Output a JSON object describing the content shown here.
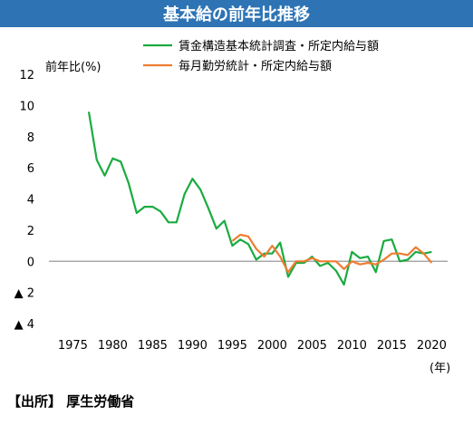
{
  "source": "【出所】 厚生労働省",
  "chart_data": {
    "type": "line",
    "title": "基本給の前年比推移",
    "ylabel": "前年比(%)",
    "xlabel": "(年)",
    "xlim": [
      1972,
      2022
    ],
    "ylim": [
      -4,
      12
    ],
    "xticks": [
      1975,
      1980,
      1985,
      1990,
      1995,
      2000,
      2005,
      2010,
      2015,
      2020
    ],
    "yticks": [
      {
        "value": 12,
        "label": "12"
      },
      {
        "value": 10,
        "label": "10"
      },
      {
        "value": 8,
        "label": "8"
      },
      {
        "value": 6,
        "label": "6"
      },
      {
        "value": 4,
        "label": "4"
      },
      {
        "value": 2,
        "label": "2"
      },
      {
        "value": 0,
        "label": "0"
      },
      {
        "value": -2,
        "label": "▲ 2"
      },
      {
        "value": -4,
        "label": "▲ 4"
      }
    ],
    "legend_position": "top-right",
    "series": [
      {
        "name": "賃金構造基本統計調査・所定内給与額",
        "color": "#1aab40",
        "x": [
          1977,
          1978,
          1979,
          1980,
          1981,
          1982,
          1983,
          1984,
          1985,
          1986,
          1987,
          1988,
          1989,
          1990,
          1991,
          1992,
          1993,
          1994,
          1995,
          1996,
          1997,
          1998,
          1999,
          2000,
          2001,
          2002,
          2003,
          2004,
          2005,
          2006,
          2007,
          2008,
          2009,
          2010,
          2011,
          2012,
          2013,
          2014,
          2015,
          2016,
          2017,
          2018,
          2019,
          2020
        ],
        "y": [
          9.6,
          6.5,
          5.5,
          6.6,
          6.4,
          5.0,
          3.1,
          3.5,
          3.5,
          3.2,
          2.5,
          2.5,
          4.3,
          5.3,
          4.6,
          3.4,
          2.1,
          2.6,
          1.0,
          1.4,
          1.1,
          0.1,
          0.5,
          0.5,
          1.2,
          -1.0,
          -0.1,
          -0.1,
          0.3,
          -0.3,
          -0.1,
          -0.6,
          -1.5,
          0.6,
          0.2,
          0.3,
          -0.7,
          1.3,
          1.4,
          0.0,
          0.1,
          0.6,
          0.5,
          0.6
        ]
      },
      {
        "name": "毎月勤労統計・所定内給与額",
        "color": "#ed7d31",
        "x": [
          1995,
          1996,
          1997,
          1998,
          1999,
          2000,
          2001,
          2002,
          2003,
          2004,
          2005,
          2006,
          2007,
          2008,
          2009,
          2010,
          2011,
          2012,
          2013,
          2014,
          2015,
          2016,
          2017,
          2018,
          2019,
          2020
        ],
        "y": [
          1.3,
          1.7,
          1.6,
          0.8,
          0.3,
          1.0,
          0.3,
          -0.7,
          0.0,
          0.0,
          0.2,
          0.0,
          0.0,
          0.0,
          -0.5,
          0.0,
          -0.2,
          -0.1,
          -0.2,
          0.1,
          0.5,
          0.5,
          0.4,
          0.9,
          0.5,
          -0.1
        ]
      }
    ]
  }
}
